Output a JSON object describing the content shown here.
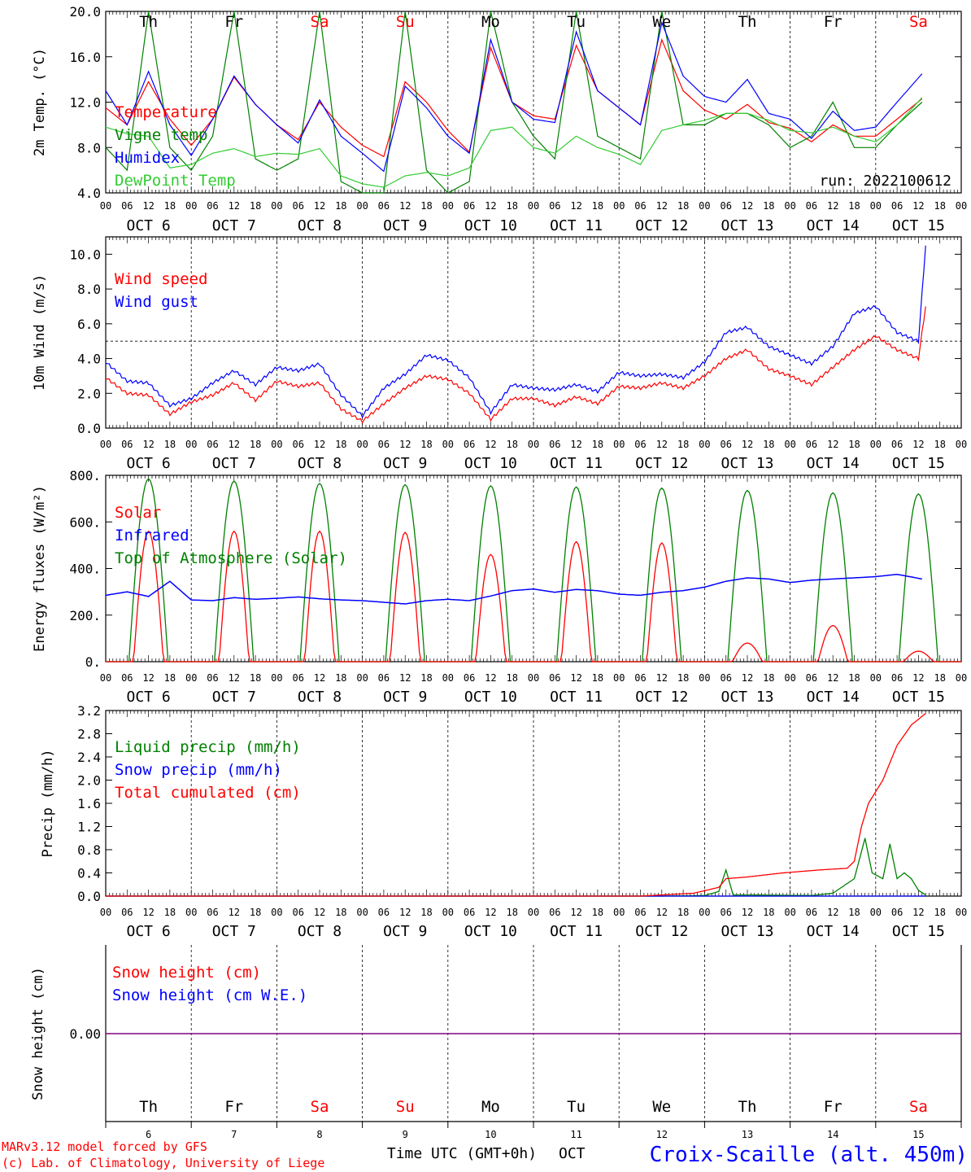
{
  "days": [
    {
      "dow": "Th",
      "date": "OCT  6",
      "num": "6",
      "weekend": false
    },
    {
      "dow": "Fr",
      "date": "OCT  7",
      "num": "7",
      "weekend": false
    },
    {
      "dow": "Sa",
      "date": "OCT  8",
      "num": "8",
      "weekend": true
    },
    {
      "dow": "Su",
      "date": "OCT  9",
      "num": "9",
      "weekend": true
    },
    {
      "dow": "Mo",
      "date": "OCT 10",
      "num": "10",
      "weekend": false
    },
    {
      "dow": "Tu",
      "date": "OCT 11",
      "num": "11",
      "weekend": false
    },
    {
      "dow": "We",
      "date": "OCT 12",
      "num": "12",
      "weekend": false
    },
    {
      "dow": "Th",
      "date": "OCT 13",
      "num": "13",
      "weekend": false
    },
    {
      "dow": "Fr",
      "date": "OCT 14",
      "num": "14",
      "weekend": false
    },
    {
      "dow": "Sa",
      "date": "OCT 15",
      "num": "15",
      "weekend": true
    }
  ],
  "hour_labels": [
    "00",
    "06",
    "12",
    "18"
  ],
  "colors": {
    "red": "#ff0000",
    "blue": "#0000ff",
    "green": "#008000",
    "lightgreen": "#33cc33",
    "purple": "#800080",
    "weekend": "#ff0000",
    "text": "#000000"
  },
  "chart_data": [
    {
      "id": "temp",
      "type": "line",
      "ylabel": "2m Temp. (°C)",
      "ylim": [
        4.0,
        20.0
      ],
      "yticks": [
        "4.0",
        "8.0",
        "12.0",
        "16.0",
        "20.0"
      ],
      "run_label": "run: 2022100612",
      "x_unit": "hours since OCT 6 00 UTC",
      "series": [
        {
          "name": "Temperature",
          "color": "red",
          "x": [
            0,
            6,
            12,
            18,
            24,
            30,
            36,
            42,
            48,
            54,
            60,
            66,
            72,
            78,
            84,
            90,
            96,
            102,
            108,
            114,
            120,
            126,
            132,
            138,
            144,
            150,
            156,
            162,
            168,
            174,
            180,
            186,
            192,
            198,
            204,
            210,
            216,
            222,
            229
          ],
          "values": [
            11.5,
            10,
            13.8,
            10.5,
            8.2,
            10.5,
            14.2,
            11.8,
            10,
            8.7,
            12,
            9.8,
            8.2,
            7.2,
            13.8,
            12,
            9.5,
            7.6,
            16.8,
            12,
            10.8,
            10.5,
            17,
            13,
            11.5,
            10,
            17.5,
            13,
            11.3,
            10.5,
            11.8,
            10.2,
            9.7,
            8.5,
            10,
            9,
            9,
            10.5,
            12.3
          ]
        },
        {
          "name": "Vigne temp",
          "color": "green",
          "x": [
            0,
            6,
            12,
            18,
            24,
            30,
            36,
            42,
            48,
            54,
            60,
            66,
            72,
            78,
            84,
            90,
            96,
            102,
            108,
            114,
            120,
            126,
            132,
            138,
            144,
            150,
            156,
            162,
            168,
            174,
            180,
            186,
            192,
            198,
            204,
            210,
            216,
            222,
            229
          ],
          "values": [
            8,
            6,
            20,
            8,
            6,
            9,
            20,
            7,
            6,
            7,
            20,
            5,
            4,
            4,
            20,
            6,
            4,
            5,
            20,
            12,
            9,
            7,
            20,
            9,
            8,
            7,
            20,
            10,
            10,
            11,
            11,
            10,
            8,
            9,
            12,
            8,
            8,
            10,
            12
          ]
        },
        {
          "name": "Humidex",
          "color": "blue",
          "x": [
            0,
            6,
            12,
            18,
            24,
            30,
            36,
            42,
            48,
            54,
            60,
            66,
            72,
            78,
            84,
            90,
            96,
            102,
            108,
            114,
            120,
            126,
            132,
            138,
            144,
            150,
            156,
            162,
            168,
            174,
            180,
            186,
            192,
            198,
            204,
            210,
            216,
            222,
            229
          ],
          "values": [
            13,
            10,
            14.7,
            10,
            7.3,
            10.5,
            14.3,
            11.8,
            10,
            8.4,
            12.2,
            9,
            7.5,
            5.9,
            13.4,
            11.5,
            9,
            7.5,
            17.5,
            12,
            10.5,
            10.2,
            18.2,
            13,
            11.5,
            10,
            19,
            14.3,
            12.5,
            12,
            14,
            11,
            10.5,
            8.8,
            11.2,
            9.5,
            9.8,
            12,
            14.5
          ]
        },
        {
          "name": "DewPoint Temp",
          "color": "lightgreen",
          "x": [
            0,
            6,
            12,
            18,
            24,
            30,
            36,
            42,
            48,
            54,
            60,
            66,
            72,
            78,
            84,
            90,
            96,
            102,
            108,
            114,
            120,
            126,
            132,
            138,
            144,
            150,
            156,
            162,
            168,
            174,
            180,
            186,
            192,
            198,
            204,
            210,
            216,
            222,
            229
          ],
          "values": [
            9.8,
            9.2,
            9,
            6.2,
            6.5,
            7.5,
            7.9,
            7.2,
            7.5,
            7.4,
            7.9,
            5.5,
            4.8,
            4.5,
            5.5,
            5.8,
            5.5,
            6.2,
            9.5,
            9.8,
            8,
            7.5,
            9,
            8,
            7.4,
            6.5,
            9.5,
            10,
            10.4,
            11,
            11,
            10.4,
            9.5,
            9.3,
            9.8,
            9,
            8.5,
            10,
            12.4
          ]
        }
      ]
    },
    {
      "id": "wind",
      "type": "line",
      "ylabel": "10m Wind (m/s)",
      "ylim": [
        0,
        11
      ],
      "yticks": [
        "0.0",
        "2.0",
        "4.0",
        "6.0",
        "8.0",
        "10.0"
      ],
      "dashed_y": 5,
      "series": [
        {
          "name": "Wind speed",
          "color": "red",
          "x": [
            0,
            6,
            12,
            18,
            24,
            30,
            36,
            42,
            48,
            54,
            60,
            66,
            72,
            78,
            84,
            90,
            96,
            102,
            108,
            114,
            120,
            126,
            132,
            138,
            144,
            150,
            156,
            162,
            168,
            174,
            180,
            186,
            192,
            198,
            204,
            210,
            216,
            222,
            228,
            230
          ],
          "values": [
            2.9,
            2,
            1.9,
            0.8,
            1.5,
            1.9,
            2.6,
            1.6,
            2.7,
            2.4,
            2.6,
            1.1,
            0.4,
            1.4,
            2.3,
            3.0,
            2.8,
            2.0,
            0.5,
            1.7,
            1.7,
            1.3,
            1.8,
            1.4,
            2.4,
            2.3,
            2.6,
            2.3,
            3.0,
            4.0,
            4.5,
            3.4,
            3.0,
            2.5,
            3.5,
            4.5,
            5.3,
            4.5,
            4.0,
            7
          ]
        },
        {
          "name": "Wind gust",
          "color": "blue",
          "x": [
            0,
            6,
            12,
            18,
            24,
            30,
            36,
            42,
            48,
            54,
            60,
            66,
            72,
            78,
            84,
            90,
            96,
            102,
            108,
            114,
            120,
            126,
            132,
            138,
            144,
            150,
            156,
            162,
            168,
            174,
            180,
            186,
            192,
            198,
            204,
            210,
            216,
            222,
            228,
            230
          ],
          "values": [
            3.8,
            2.7,
            2.6,
            1.3,
            1.7,
            2.6,
            3.3,
            2.5,
            3.5,
            3.3,
            3.7,
            1.9,
            0.7,
            2.3,
            3.1,
            4.2,
            3.9,
            2.9,
            0.9,
            2.5,
            2.3,
            2.2,
            2.5,
            2.1,
            3.2,
            3.0,
            3.1,
            2.9,
            3.8,
            5.5,
            5.8,
            4.7,
            4.2,
            3.7,
            4.7,
            6.6,
            7.0,
            5.5,
            5.0,
            10.5
          ]
        }
      ]
    },
    {
      "id": "flux",
      "type": "line",
      "ylabel": "Energy fluxes (W/m²)",
      "ylim": [
        0,
        800
      ],
      "yticks": [
        "0.",
        "200.",
        "400.",
        "600.",
        "800."
      ],
      "solar_peaks": [
        560,
        560,
        560,
        555,
        460,
        515,
        510,
        80,
        155,
        45
      ],
      "toa_peaks": [
        785,
        775,
        765,
        760,
        755,
        750,
        745,
        735,
        725,
        720
      ],
      "infrared": {
        "x": [
          0,
          6,
          12,
          18,
          24,
          30,
          36,
          42,
          48,
          54,
          60,
          66,
          72,
          78,
          84,
          90,
          96,
          102,
          108,
          114,
          120,
          126,
          132,
          138,
          144,
          150,
          156,
          162,
          168,
          174,
          180,
          186,
          192,
          198,
          204,
          210,
          216,
          222,
          229
        ],
        "values": [
          285,
          300,
          280,
          345,
          265,
          262,
          275,
          268,
          272,
          278,
          270,
          265,
          262,
          255,
          248,
          262,
          268,
          262,
          282,
          305,
          312,
          298,
          310,
          305,
          290,
          285,
          298,
          305,
          320,
          345,
          360,
          355,
          340,
          350,
          355,
          360,
          365,
          375,
          355
        ]
      },
      "series": [
        {
          "name": "Solar",
          "color": "red"
        },
        {
          "name": "Infrared",
          "color": "blue"
        },
        {
          "name": "Top of Atmosphere (Solar)",
          "color": "green"
        }
      ]
    },
    {
      "id": "precip",
      "type": "line",
      "ylabel": "Precip (mm/h)",
      "ylim": [
        0,
        3.2
      ],
      "yticks": [
        "0.0",
        "0.4",
        "0.8",
        "1.2",
        "1.6",
        "2.0",
        "2.4",
        "2.8",
        "3.2"
      ],
      "series": [
        {
          "name": "Liquid precip (mm/h)",
          "color": "green",
          "x": [
            0,
            156,
            168,
            172,
            174,
            176,
            180,
            198,
            204,
            210,
            213,
            215,
            218,
            220,
            222,
            224,
            226,
            228,
            230
          ],
          "values": [
            0,
            0,
            0.01,
            0.08,
            0.45,
            0.02,
            0.02,
            0.01,
            0.05,
            0.3,
            1.0,
            0.4,
            0.3,
            0.9,
            0.3,
            0.4,
            0.3,
            0.1,
            0.02
          ]
        },
        {
          "name": "Snow precip (mm/h)",
          "color": "blue",
          "x": [
            0,
            230
          ],
          "values": [
            0,
            0
          ]
        },
        {
          "name": "Total cumulated (cm)",
          "color": "red",
          "x": [
            0,
            150,
            165,
            172,
            174,
            180,
            190,
            200,
            208,
            210,
            212,
            214,
            218,
            222,
            226,
            230
          ],
          "values": [
            0,
            0,
            0.05,
            0.15,
            0.3,
            0.33,
            0.4,
            0.45,
            0.48,
            0.6,
            1.2,
            1.6,
            2.0,
            2.6,
            2.95,
            3.15
          ]
        }
      ]
    },
    {
      "id": "snow",
      "type": "line",
      "ylabel": "Snow height (cm)",
      "ytick": "0.00",
      "xlabel": "Time UTC (GMT+0h)",
      "xlabel_month": "OCT",
      "series": [
        {
          "name": "Snow height (cm)",
          "color": "red",
          "x": [
            0,
            230
          ],
          "values": [
            0,
            0
          ]
        },
        {
          "name": "Snow height (cm W.E.)",
          "color": "blue",
          "x": [
            0,
            230
          ],
          "values": [
            0,
            0
          ]
        }
      ]
    }
  ],
  "footer": {
    "model": "MARv3.12 model forced by GFS",
    "credit": "(c) Lab. of Climatology, University of Liege",
    "station": "Croix-Scaille (alt. 450m)"
  }
}
